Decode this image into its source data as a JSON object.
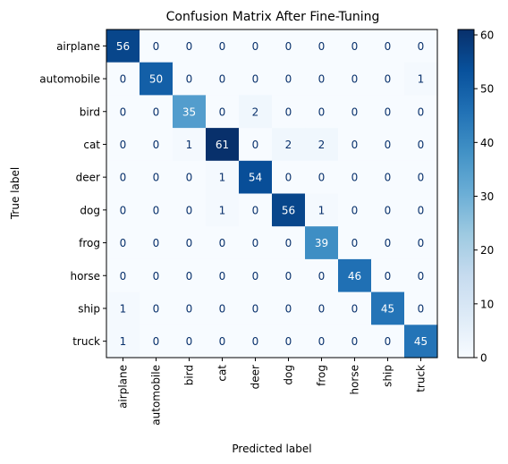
{
  "chart_data": {
    "type": "heatmap",
    "title": "Confusion Matrix After Fine-Tuning",
    "xlabel": "Predicted label",
    "ylabel": "True label",
    "x_categories": [
      "airplane",
      "automobile",
      "bird",
      "cat",
      "deer",
      "dog",
      "frog",
      "horse",
      "ship",
      "truck"
    ],
    "y_categories": [
      "airplane",
      "automobile",
      "bird",
      "cat",
      "deer",
      "dog",
      "frog",
      "horse",
      "ship",
      "truck"
    ],
    "values": [
      [
        56,
        0,
        0,
        0,
        0,
        0,
        0,
        0,
        0,
        0
      ],
      [
        0,
        50,
        0,
        0,
        0,
        0,
        0,
        0,
        0,
        1
      ],
      [
        0,
        0,
        35,
        0,
        2,
        0,
        0,
        0,
        0,
        0
      ],
      [
        0,
        0,
        1,
        61,
        0,
        2,
        2,
        0,
        0,
        0
      ],
      [
        0,
        0,
        0,
        1,
        54,
        0,
        0,
        0,
        0,
        0
      ],
      [
        0,
        0,
        0,
        1,
        0,
        56,
        1,
        0,
        0,
        0
      ],
      [
        0,
        0,
        0,
        0,
        0,
        0,
        39,
        0,
        0,
        0
      ],
      [
        0,
        0,
        0,
        0,
        0,
        0,
        0,
        46,
        0,
        0
      ],
      [
        1,
        0,
        0,
        0,
        0,
        0,
        0,
        0,
        45,
        0
      ],
      [
        1,
        0,
        0,
        0,
        0,
        0,
        0,
        0,
        0,
        45
      ]
    ],
    "colormap": "Blues",
    "color_range": [
      0,
      61
    ],
    "colorbar_ticks": [
      "0",
      "10",
      "20",
      "30",
      "40",
      "50",
      "60"
    ],
    "grid": false,
    "colorbar_position": "right"
  }
}
